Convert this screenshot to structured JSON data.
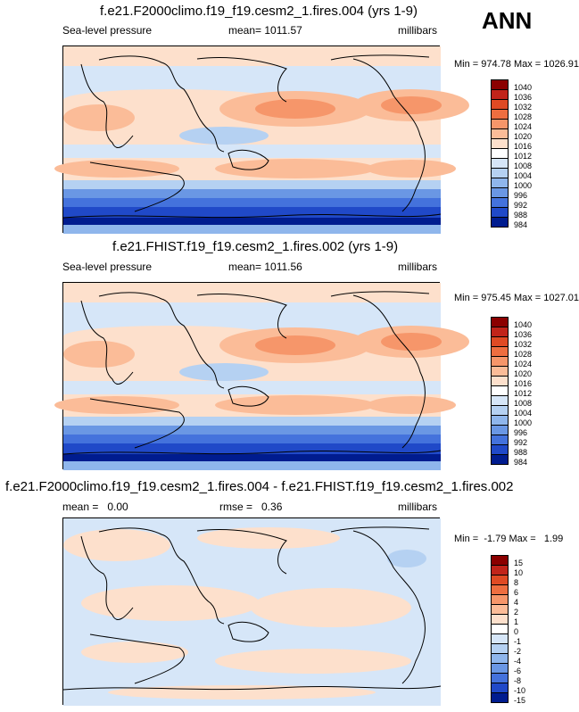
{
  "season": "ANN",
  "panels": [
    {
      "title": "f.e21.F2000climo.f19_f19.cesm2_1.fires.004 (yrs 1-9)",
      "left_label": "Sea-level pressure",
      "mid_label": "mean= 1011.57",
      "right_label": "millibars",
      "minmax": "Min = 974.78 Max = 1026.91"
    },
    {
      "title": "f.e21.FHIST.f19_f19.cesm2_1.fires.002 (yrs 1-9)",
      "left_label": "Sea-level pressure",
      "mid_label": "mean= 1011.56",
      "right_label": "millibars",
      "minmax": "Min = 975.45 Max = 1027.01"
    },
    {
      "title": "f.e21.F2000climo.f19_f19.cesm2_1.fires.004 - f.e21.FHIST.f19_f19.cesm2_1.fires.002",
      "left_label": "mean =   0.00",
      "mid_label": "rmse =   0.36",
      "right_label": "millibars",
      "minmax": "Min =  -1.79 Max =   1.99"
    }
  ],
  "chart_data": [
    {
      "type": "heatmap",
      "title": "f.e21.F2000climo.f19_f19.cesm2_1.fires.004 (yrs 1-9)",
      "variable": "Sea-level pressure",
      "units": "millibars",
      "mean": 1011.57,
      "min": 974.78,
      "max": 1026.91,
      "colorbar_levels": [
        "1040",
        "1036",
        "1032",
        "1028",
        "1024",
        "1020",
        "1016",
        "1012",
        "1008",
        "1004",
        "1000",
        "996",
        "992",
        "988",
        "984"
      ],
      "colorbar_colors": [
        "#8b0000",
        "#c1241a",
        "#df4a24",
        "#ee6e40",
        "#f6966a",
        "#fbbc98",
        "#fde0cc",
        "#ffffff",
        "#d6e6f8",
        "#b5d1f2",
        "#8fb6ec",
        "#6a97e4",
        "#4472dc",
        "#2049c8",
        "#001c8f"
      ]
    },
    {
      "type": "heatmap",
      "title": "f.e21.FHIST.f19_f19.cesm2_1.fires.002 (yrs 1-9)",
      "variable": "Sea-level pressure",
      "units": "millibars",
      "mean": 1011.56,
      "min": 975.45,
      "max": 1027.01,
      "colorbar_levels": [
        "1040",
        "1036",
        "1032",
        "1028",
        "1024",
        "1020",
        "1016",
        "1012",
        "1008",
        "1004",
        "1000",
        "996",
        "992",
        "988",
        "984"
      ],
      "colorbar_colors": [
        "#8b0000",
        "#c1241a",
        "#df4a24",
        "#ee6e40",
        "#f6966a",
        "#fbbc98",
        "#fde0cc",
        "#ffffff",
        "#d6e6f8",
        "#b5d1f2",
        "#8fb6ec",
        "#6a97e4",
        "#4472dc",
        "#2049c8",
        "#001c8f"
      ]
    },
    {
      "type": "heatmap",
      "title": "f.e21.F2000climo.f19_f19.cesm2_1.fires.004 - f.e21.FHIST.f19_f19.cesm2_1.fires.002",
      "units": "millibars",
      "mean": 0.0,
      "rmse": 0.36,
      "min": -1.79,
      "max": 1.99,
      "colorbar_levels": [
        "15",
        "10",
        "8",
        "6",
        "4",
        "2",
        "1",
        "0",
        "-1",
        "-2",
        "-4",
        "-6",
        "-8",
        "-10",
        "-15"
      ],
      "colorbar_colors": [
        "#8b0000",
        "#c1241a",
        "#df4a24",
        "#ee6e40",
        "#f6966a",
        "#fbbc98",
        "#fde0cc",
        "#ffffff",
        "#d6e6f8",
        "#b5d1f2",
        "#8fb6ec",
        "#6a97e4",
        "#4472dc",
        "#2049c8",
        "#001c8f"
      ]
    }
  ]
}
